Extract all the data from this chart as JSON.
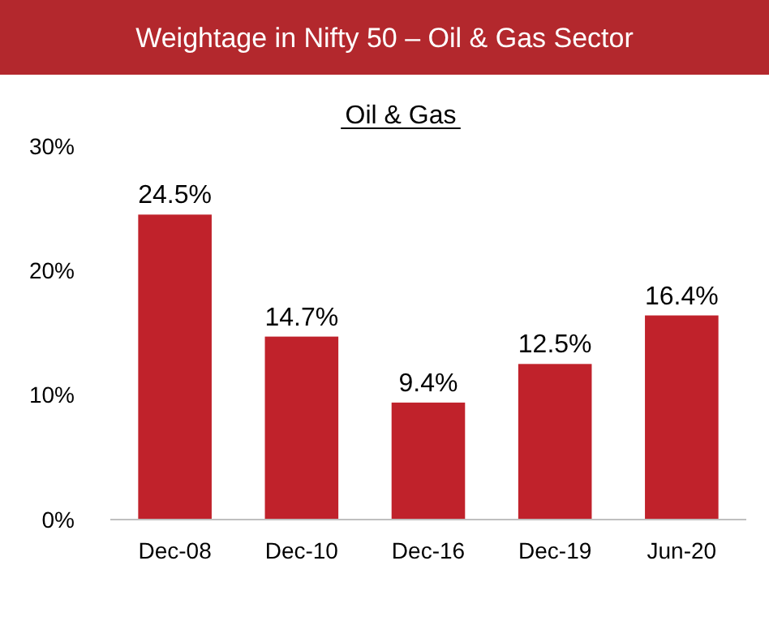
{
  "chart_data": {
    "type": "bar",
    "title": "Weightage in Nifty 50 – Oil & Gas Sector",
    "subtitle": "Oil & Gas",
    "categories": [
      "Dec-08",
      "Dec-10",
      "Dec-16",
      "Dec-19",
      "Jun-20"
    ],
    "values": [
      24.5,
      14.7,
      9.4,
      12.5,
      16.4
    ],
    "value_labels": [
      "24.5%",
      "14.7%",
      "9.4%",
      "12.5%",
      "16.4%"
    ],
    "color": "#c0222b",
    "ylim": [
      0,
      30
    ],
    "yticks": [
      {
        "value": 0,
        "label": "0%"
      },
      {
        "value": 10,
        "label": "10%"
      },
      {
        "value": 20,
        "label": "20%"
      },
      {
        "value": 30,
        "label": "30%"
      }
    ],
    "grid": false
  }
}
